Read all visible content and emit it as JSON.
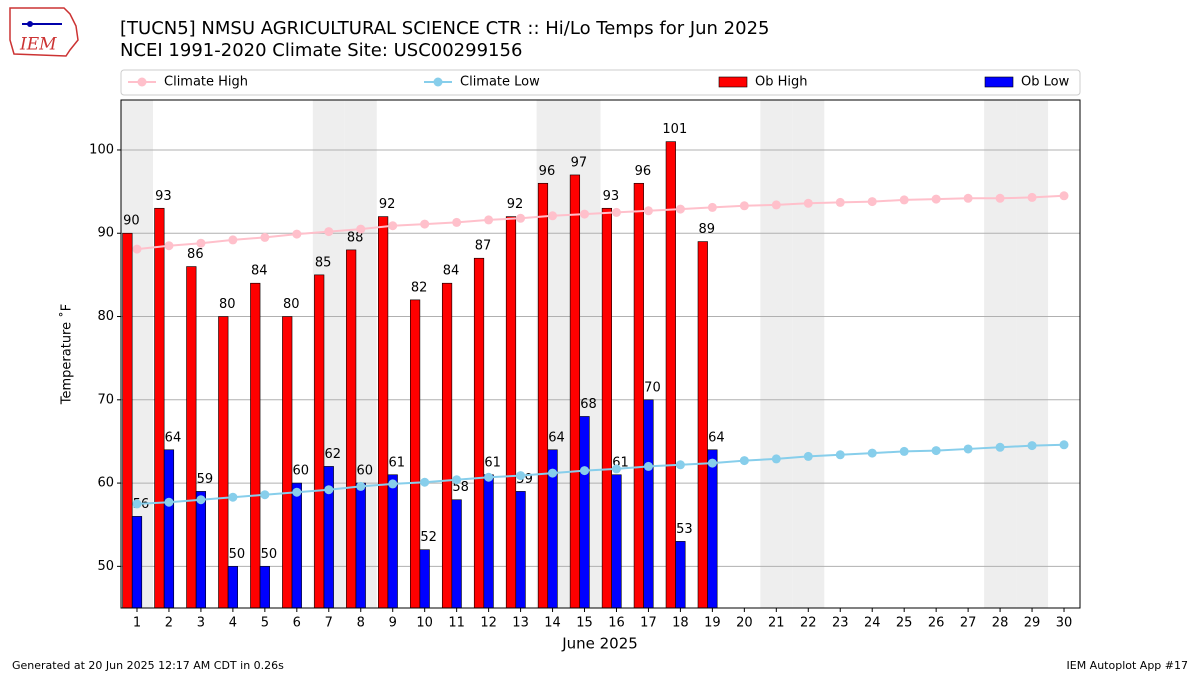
{
  "chart_data": {
    "type": "bar",
    "title": "[TUCN5] NMSU AGRICULTURAL SCIENCE CTR :: Hi/Lo Temps for Jun 2025",
    "subtitle": "NCEI 1991-2020 Climate Site: USC00299156",
    "logo_text": "IEM",
    "ylabel": "Temperature ˚F",
    "xlabel": "June 2025",
    "footer_left": "Generated at 20 Jun 2025 12:17 AM CDT in 0.26s",
    "footer_right": "IEM Autoplot App #17",
    "x": [
      1,
      2,
      3,
      4,
      5,
      6,
      7,
      8,
      9,
      10,
      11,
      12,
      13,
      14,
      15,
      16,
      17,
      18,
      19,
      20,
      21,
      22,
      23,
      24,
      25,
      26,
      27,
      28,
      29,
      30
    ],
    "xlim": [
      0.5,
      30.5
    ],
    "xticks": [
      1,
      2,
      3,
      4,
      5,
      6,
      7,
      8,
      9,
      10,
      11,
      12,
      13,
      14,
      15,
      16,
      17,
      18,
      19,
      20,
      21,
      22,
      23,
      24,
      25,
      26,
      27,
      28,
      29,
      30
    ],
    "ylim": [
      45,
      106
    ],
    "yticks": [
      50,
      60,
      70,
      80,
      90,
      100
    ],
    "grid": true,
    "shaded_days": [
      1,
      7,
      8,
      14,
      15,
      21,
      22,
      28,
      29
    ],
    "series": [
      {
        "name": "Climate High",
        "type": "line",
        "color": "#ffc0cb",
        "values": [
          88.1,
          88.5,
          88.8,
          89.2,
          89.5,
          89.9,
          90.2,
          90.5,
          90.9,
          91.1,
          91.3,
          91.6,
          91.8,
          92.1,
          92.3,
          92.5,
          92.7,
          92.9,
          93.1,
          93.3,
          93.4,
          93.6,
          93.7,
          93.8,
          94.0,
          94.1,
          94.2,
          94.2,
          94.3,
          94.5
        ]
      },
      {
        "name": "Climate Low",
        "type": "line",
        "color": "#87ceeb",
        "values": [
          57.5,
          57.7,
          58.0,
          58.3,
          58.6,
          58.9,
          59.2,
          59.6,
          59.9,
          60.1,
          60.4,
          60.7,
          60.9,
          61.2,
          61.5,
          61.7,
          62.0,
          62.2,
          62.4,
          62.7,
          62.9,
          63.2,
          63.4,
          63.6,
          63.8,
          63.9,
          64.1,
          64.3,
          64.5,
          64.6
        ]
      },
      {
        "name": "Ob High",
        "type": "bar",
        "color": "#ff0000",
        "values": [
          90,
          93,
          86,
          80,
          84,
          80,
          85,
          88,
          92,
          82,
          84,
          87,
          92,
          96,
          97,
          93,
          96,
          101,
          89,
          null,
          null,
          null,
          null,
          null,
          null,
          null,
          null,
          null,
          null,
          null
        ]
      },
      {
        "name": "Ob Low",
        "type": "bar",
        "color": "#0000ff",
        "values": [
          56,
          64,
          59,
          50,
          50,
          60,
          62,
          60,
          61,
          52,
          58,
          61,
          59,
          64,
          68,
          61,
          70,
          53,
          64,
          null,
          null,
          null,
          null,
          null,
          null,
          null,
          null,
          null,
          null,
          null
        ]
      }
    ]
  }
}
